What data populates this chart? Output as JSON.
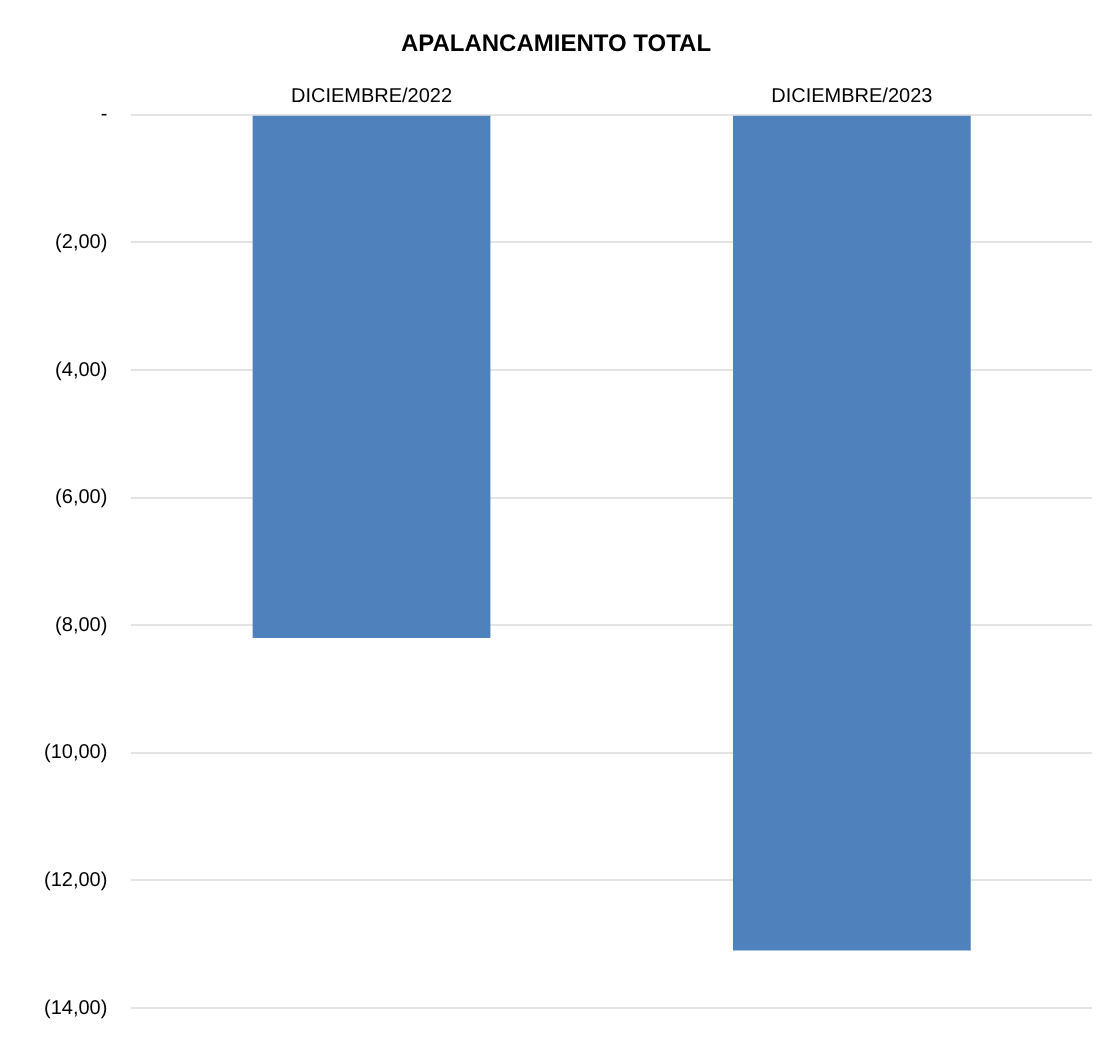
{
  "chart_data": {
    "type": "bar",
    "title": "APALANCAMIENTO TOTAL",
    "categories": [
      "DICIEMBRE/2022",
      "DICIEMBRE/2023"
    ],
    "values": [
      -8.2,
      -13.1
    ],
    "color": "#4f81bd",
    "ylim": [
      -14,
      0
    ],
    "yticks": [
      {
        "value": 0,
        "label": "-"
      },
      {
        "value": -2,
        "label": "(2,00)"
      },
      {
        "value": -4,
        "label": "(4,00)"
      },
      {
        "value": -6,
        "label": "(6,00)"
      },
      {
        "value": -8,
        "label": "(8,00)"
      },
      {
        "value": -10,
        "label": "(10,00)"
      },
      {
        "value": -12,
        "label": "(12,00)"
      },
      {
        "value": -14,
        "label": "(14,00)"
      }
    ],
    "grid": "y",
    "legend": false
  }
}
